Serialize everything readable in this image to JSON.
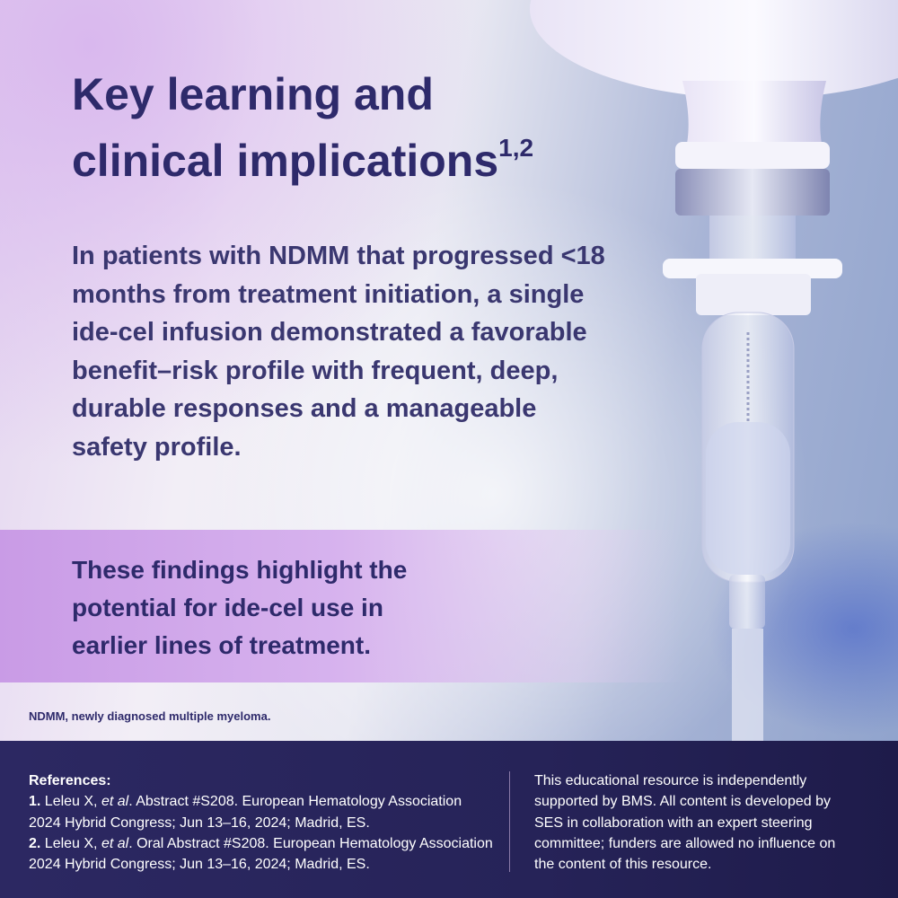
{
  "headline": {
    "line1": "Key learning and",
    "line2": "clinical implications",
    "superscript": "1,2"
  },
  "body": "In patients with NDMM that progressed <18 months from treatment initiation, a single ide-cel infusion demonstrated a favorable benefit–risk profile with frequent, deep, durable responses and a manageable safety profile.",
  "emphasis": [
    "These findings highlight the",
    "potential for ide-cel use in",
    "earlier lines of treatment."
  ],
  "abbreviation": "NDMM, newly diagnosed multiple myeloma.",
  "references": {
    "heading": "References:",
    "items": [
      {
        "num": "1.",
        "pre": " Leleu X, ",
        "etal": "et al",
        "post": ". Abstract #S208. European Hematology Association 2024 Hybrid Congress; Jun 13–16, 2024; Madrid, ES."
      },
      {
        "num": "2.",
        "pre": " Leleu X, ",
        "etal": "et al",
        "post": ". Oral Abstract #S208. European Hematology Association 2024 Hybrid Congress; Jun 13–16, 2024; Madrid, ES."
      }
    ]
  },
  "disclaimer": "This educational resource is independently supported by BMS. All content is developed by SES in collaboration with an expert steering committee; funders are allowed no influence on the content of this resource.",
  "colors": {
    "title": "#2e2a6b",
    "band": "#c99be6",
    "footer": "#2a2660"
  }
}
